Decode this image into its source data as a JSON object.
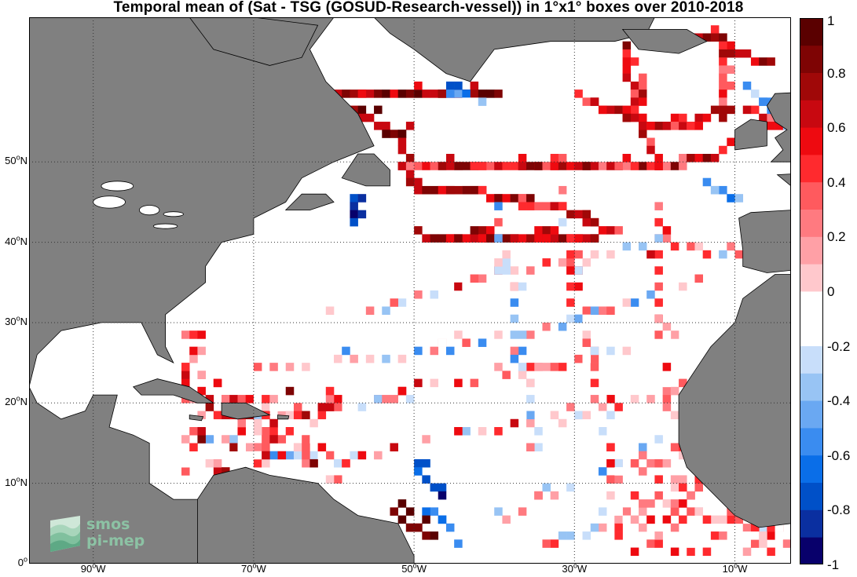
{
  "title": "Temporal mean of (Sat - TSG (GOSUD-Research-vessel)) in 1°x1° boxes over 2010-2018",
  "map": {
    "lon_range": [
      -98,
      -3
    ],
    "lat_range": [
      0,
      68
    ],
    "background_color": "#ffffff",
    "land_color": "#808080",
    "grid_lines": "dotted",
    "lat_labels": [
      {
        "value": 0,
        "num": "0",
        "sup": "o",
        "hem": ""
      },
      {
        "value": 10,
        "num": "10",
        "sup": "o",
        "hem": "N"
      },
      {
        "value": 20,
        "num": "20",
        "sup": "o",
        "hem": "N"
      },
      {
        "value": 30,
        "num": "30",
        "sup": "o",
        "hem": "N"
      },
      {
        "value": 40,
        "num": "40",
        "sup": "o",
        "hem": "N"
      },
      {
        "value": 50,
        "num": "50",
        "sup": "o",
        "hem": "N"
      }
    ],
    "lon_labels": [
      {
        "value": -90,
        "num": "90",
        "sup": "o",
        "hem": "W"
      },
      {
        "value": -70,
        "num": "70",
        "sup": "o",
        "hem": "W"
      },
      {
        "value": -50,
        "num": "50",
        "sup": "o",
        "hem": "W"
      },
      {
        "value": -30,
        "num": "30",
        "sup": "o",
        "hem": "W"
      },
      {
        "value": -10,
        "num": "10",
        "sup": "o",
        "hem": "W"
      }
    ]
  },
  "colorbar": {
    "range": [
      -1,
      1
    ],
    "ticks": [
      "1",
      "0.8",
      "0.6",
      "0.4",
      "0.2",
      "0",
      "-0.2",
      "-0.4",
      "-0.6",
      "-0.8",
      "-1"
    ],
    "colors": [
      "#08006b",
      "#0a2fa0",
      "#0050c8",
      "#0a6ee8",
      "#3a8cf0",
      "#6aa8f2",
      "#98c4f4",
      "#c8defa",
      "#ffffff",
      "#ffffff",
      "#ffc8cc",
      "#ffa0a6",
      "#ff7a80",
      "#ff5a5e",
      "#ff2a2e",
      "#ee0a10",
      "#c80810",
      "#a00808",
      "#7e0404",
      "#5a0000"
    ]
  },
  "logo": {
    "line1": "smos",
    "line2": "pi-mep"
  }
}
